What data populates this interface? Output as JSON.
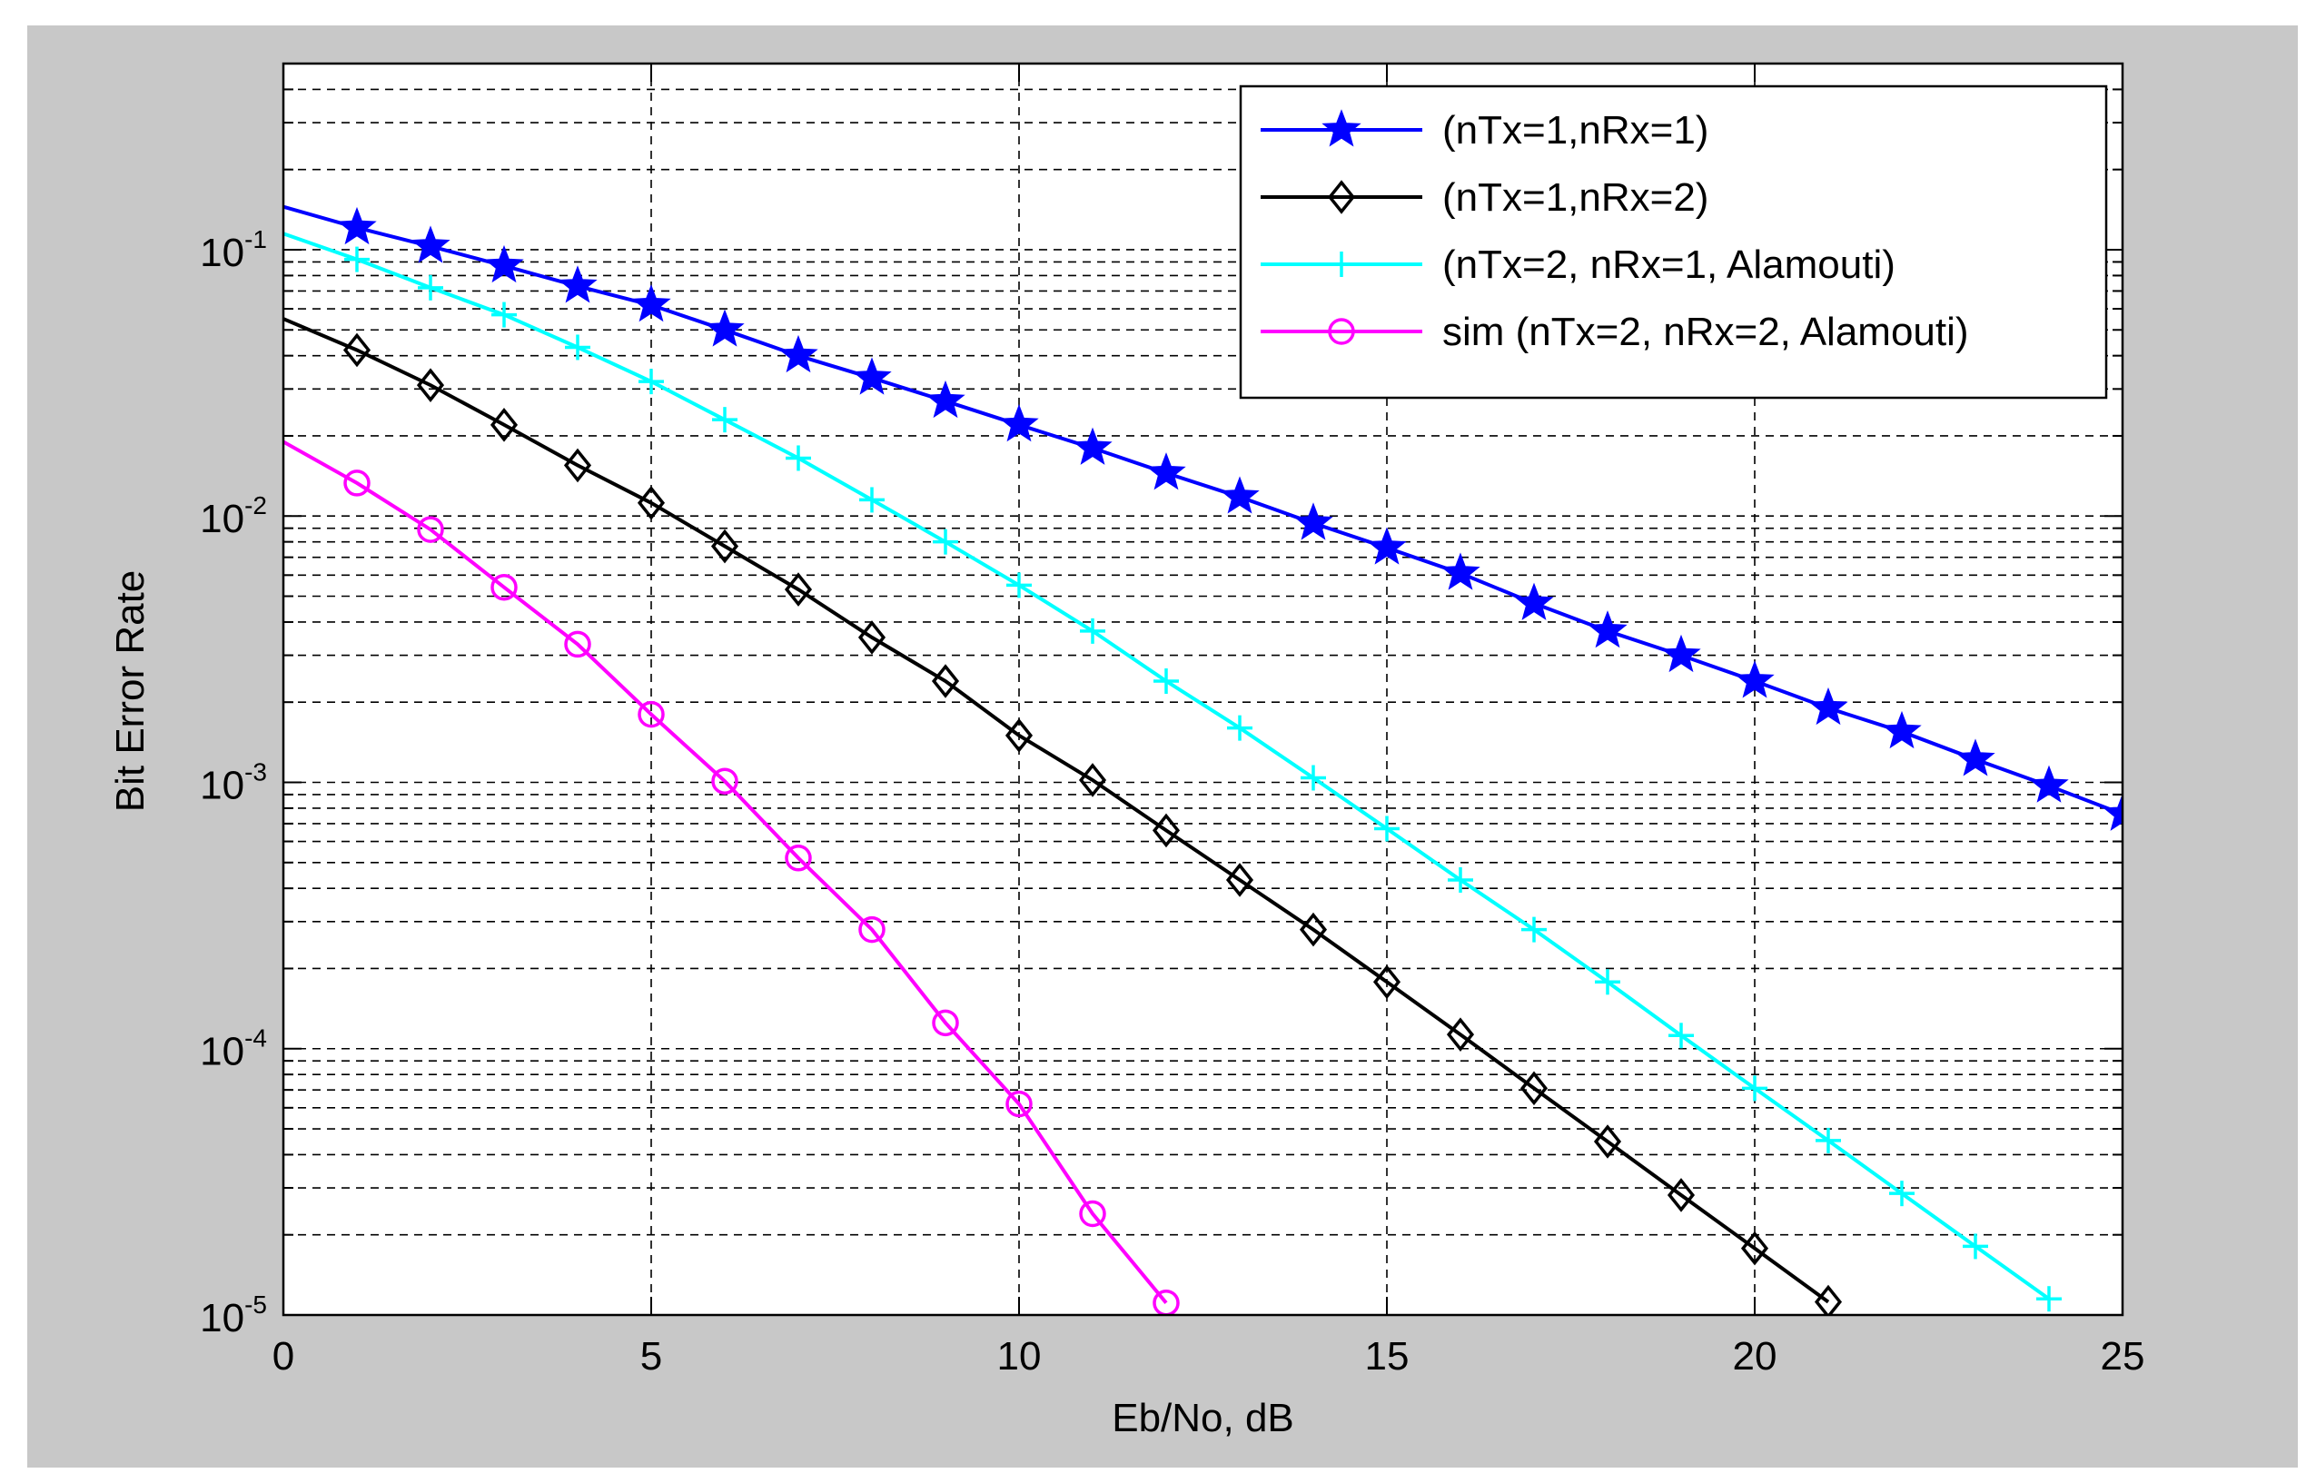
{
  "chart_data": {
    "type": "line",
    "title": "",
    "xlabel": "Eb/No, dB",
    "ylabel": "Bit Error Rate",
    "xlim": [
      0,
      25
    ],
    "ylim": [
      1e-05,
      0.5
    ],
    "yscale": "log",
    "grid": true,
    "legend_position": "top-right",
    "x_ticks": [
      0,
      5,
      10,
      15,
      20,
      25
    ],
    "x_tick_labels": [
      "0",
      "5",
      "10",
      "15",
      "20",
      "25"
    ],
    "y_ticks": [
      0.1,
      0.01,
      0.001,
      0.0001,
      1e-05
    ],
    "y_tick_labels": [
      {
        "base": "10",
        "exp": "-1"
      },
      {
        "base": "10",
        "exp": "-2"
      },
      {
        "base": "10",
        "exp": "-3"
      },
      {
        "base": "10",
        "exp": "-4"
      },
      {
        "base": "10",
        "exp": "-5"
      }
    ],
    "series": [
      {
        "name": "(nTx=1,nRx=1)",
        "color": "#0000ff",
        "marker": "star",
        "x": [
          0,
          1,
          2,
          3,
          4,
          5,
          6,
          7,
          8,
          9,
          10,
          11,
          12,
          13,
          14,
          15,
          16,
          17,
          18,
          19,
          20,
          21,
          22,
          23,
          24,
          25
        ],
        "y": [
          0.145,
          0.121,
          0.103,
          0.087,
          0.073,
          0.062,
          0.05,
          0.04,
          0.033,
          0.027,
          0.022,
          0.018,
          0.0145,
          0.0118,
          0.0094,
          0.0076,
          0.0061,
          0.0047,
          0.0037,
          0.003,
          0.0024,
          0.0019,
          0.00155,
          0.00122,
          0.00097,
          0.00076
        ]
      },
      {
        "name": "(nTx=1,nRx=2)",
        "color": "#000000",
        "marker": "diamond",
        "x": [
          0,
          1,
          2,
          3,
          4,
          5,
          6,
          7,
          8,
          9,
          10,
          11,
          12,
          13,
          14,
          15,
          16,
          17,
          18,
          19,
          20,
          21
        ],
        "y": [
          0.055,
          0.042,
          0.031,
          0.022,
          0.0155,
          0.0112,
          0.0077,
          0.0053,
          0.0035,
          0.0024,
          0.0015,
          0.00102,
          0.00066,
          0.00043,
          0.00028,
          0.000178,
          0.000113,
          7.1e-05,
          4.48e-05,
          2.82e-05,
          1.78e-05,
          1.12e-05
        ]
      },
      {
        "name": "(nTx=2, nRx=1, Alamouti)",
        "color": "#00ffff",
        "marker": "plus",
        "x": [
          0,
          1,
          2,
          3,
          4,
          5,
          6,
          7,
          8,
          9,
          10,
          11,
          12,
          13,
          14,
          15,
          16,
          17,
          18,
          19,
          20,
          21,
          22,
          23,
          24
        ],
        "y": [
          0.115,
          0.092,
          0.072,
          0.057,
          0.043,
          0.032,
          0.023,
          0.0165,
          0.0115,
          0.008,
          0.0055,
          0.0037,
          0.0024,
          0.0016,
          0.00104,
          0.00067,
          0.00043,
          0.00028,
          0.000178,
          0.000112,
          7.1e-05,
          4.52e-05,
          2.86e-05,
          1.81e-05,
          1.15e-05
        ]
      },
      {
        "name": "sim (nTx=2, nRx=2, Alamouti)",
        "color": "#ff00ff",
        "marker": "circle",
        "x": [
          0,
          1,
          2,
          3,
          4,
          5,
          6,
          7,
          8,
          9,
          10,
          11,
          12
        ],
        "y": [
          0.019,
          0.0133,
          0.0089,
          0.0054,
          0.0033,
          0.0018,
          0.00101,
          0.00052,
          0.00028,
          0.000125,
          6.2e-05,
          2.4e-05,
          1.11e-05
        ]
      }
    ]
  }
}
